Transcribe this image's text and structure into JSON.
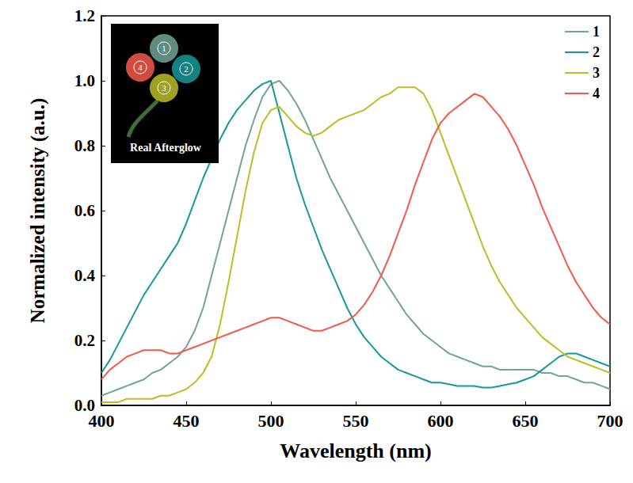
{
  "chart_data": {
    "type": "line",
    "x_label": "Wavelength (nm)",
    "y_label": "Normalized intensity (a.u.)",
    "inset_text": "Real Afterglow",
    "x": [
      400,
      405,
      410,
      415,
      420,
      425,
      430,
      435,
      440,
      445,
      450,
      455,
      460,
      465,
      470,
      475,
      480,
      485,
      490,
      495,
      500,
      505,
      510,
      515,
      520,
      525,
      530,
      535,
      540,
      545,
      550,
      555,
      560,
      565,
      570,
      575,
      580,
      585,
      590,
      595,
      600,
      605,
      610,
      615,
      620,
      625,
      630,
      635,
      640,
      645,
      650,
      655,
      660,
      665,
      670,
      675,
      680,
      685,
      690,
      695,
      700
    ],
    "xlim": [
      400,
      700
    ],
    "xticks": [
      400,
      450,
      500,
      550,
      600,
      650,
      700
    ],
    "ylim": [
      0,
      1.2
    ],
    "yticks": [
      {
        "value": 0,
        "label": "0.0"
      },
      0.2,
      0.4,
      0.6,
      0.8,
      {
        "value": 1,
        "label": "1.0"
      },
      1.2
    ],
    "grid": false,
    "legend": "upper right",
    "series": [
      {
        "name": "1",
        "color": "#6fa597",
        "values": [
          0.03,
          0.04,
          0.05,
          0.06,
          0.07,
          0.08,
          0.1,
          0.11,
          0.13,
          0.15,
          0.18,
          0.23,
          0.3,
          0.4,
          0.5,
          0.6,
          0.7,
          0.8,
          0.88,
          0.95,
          0.99,
          1.0,
          0.97,
          0.93,
          0.88,
          0.82,
          0.76,
          0.7,
          0.65,
          0.6,
          0.55,
          0.5,
          0.45,
          0.4,
          0.36,
          0.32,
          0.28,
          0.25,
          0.22,
          0.2,
          0.18,
          0.16,
          0.15,
          0.14,
          0.13,
          0.12,
          0.12,
          0.11,
          0.11,
          0.11,
          0.11,
          0.11,
          0.1,
          0.1,
          0.09,
          0.09,
          0.08,
          0.07,
          0.07,
          0.06,
          0.05
        ]
      },
      {
        "name": "2",
        "color": "#16999a",
        "values": [
          0.1,
          0.14,
          0.19,
          0.24,
          0.29,
          0.34,
          0.38,
          0.42,
          0.46,
          0.5,
          0.56,
          0.63,
          0.7,
          0.76,
          0.82,
          0.87,
          0.91,
          0.94,
          0.97,
          0.99,
          1.0,
          0.9,
          0.8,
          0.7,
          0.62,
          0.55,
          0.48,
          0.42,
          0.36,
          0.3,
          0.25,
          0.21,
          0.18,
          0.15,
          0.13,
          0.11,
          0.1,
          0.09,
          0.08,
          0.07,
          0.07,
          0.065,
          0.06,
          0.06,
          0.06,
          0.055,
          0.055,
          0.06,
          0.065,
          0.07,
          0.08,
          0.09,
          0.11,
          0.13,
          0.15,
          0.16,
          0.16,
          0.15,
          0.14,
          0.13,
          0.12
        ]
      },
      {
        "name": "3",
        "color": "#b8bf27",
        "values": [
          0.01,
          0.01,
          0.01,
          0.02,
          0.02,
          0.02,
          0.02,
          0.03,
          0.03,
          0.04,
          0.05,
          0.07,
          0.1,
          0.15,
          0.25,
          0.38,
          0.52,
          0.66,
          0.78,
          0.87,
          0.91,
          0.92,
          0.89,
          0.86,
          0.84,
          0.83,
          0.84,
          0.86,
          0.88,
          0.89,
          0.9,
          0.91,
          0.93,
          0.95,
          0.96,
          0.98,
          0.98,
          0.98,
          0.96,
          0.91,
          0.84,
          0.77,
          0.7,
          0.63,
          0.56,
          0.49,
          0.43,
          0.38,
          0.34,
          0.3,
          0.27,
          0.24,
          0.21,
          0.19,
          0.17,
          0.15,
          0.14,
          0.13,
          0.12,
          0.11,
          0.1
        ]
      },
      {
        "name": "4",
        "color": "#f4594b",
        "values": [
          0.08,
          0.11,
          0.13,
          0.15,
          0.16,
          0.17,
          0.17,
          0.17,
          0.16,
          0.16,
          0.17,
          0.18,
          0.19,
          0.2,
          0.21,
          0.22,
          0.23,
          0.24,
          0.25,
          0.26,
          0.27,
          0.27,
          0.26,
          0.25,
          0.24,
          0.23,
          0.23,
          0.24,
          0.25,
          0.26,
          0.28,
          0.31,
          0.35,
          0.4,
          0.46,
          0.53,
          0.6,
          0.68,
          0.75,
          0.82,
          0.87,
          0.9,
          0.92,
          0.94,
          0.96,
          0.95,
          0.92,
          0.89,
          0.85,
          0.8,
          0.74,
          0.68,
          0.61,
          0.55,
          0.49,
          0.43,
          0.38,
          0.34,
          0.3,
          0.27,
          0.25
        ]
      }
    ]
  }
}
